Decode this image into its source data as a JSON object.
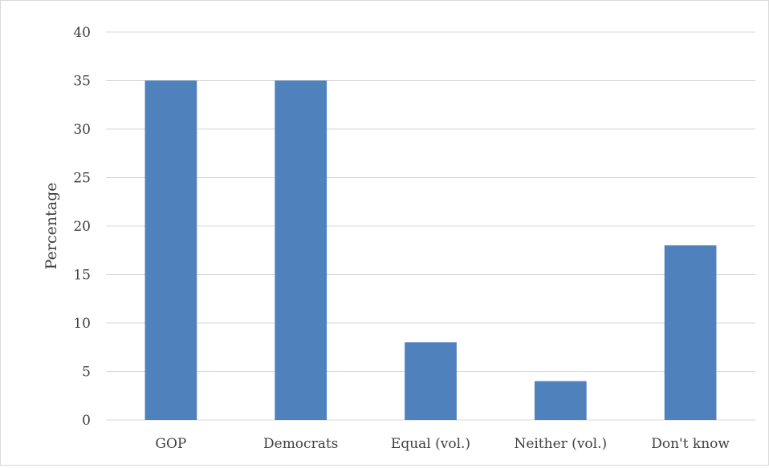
{
  "chart_data": {
    "type": "bar",
    "title": "",
    "xlabel": "",
    "ylabel": "Percentage",
    "categories": [
      "GOP",
      "Democrats",
      "Equal (vol.)",
      "Neither (vol.)",
      "Don't know"
    ],
    "values": [
      35,
      35,
      8,
      4,
      18
    ],
    "ylim": [
      0,
      40
    ],
    "yticks": [
      0,
      5,
      10,
      15,
      20,
      25,
      30,
      35,
      40
    ],
    "grid": true,
    "legend": "none",
    "bar_color": "#4f81bd",
    "grid_color": "#d9d9d9"
  }
}
